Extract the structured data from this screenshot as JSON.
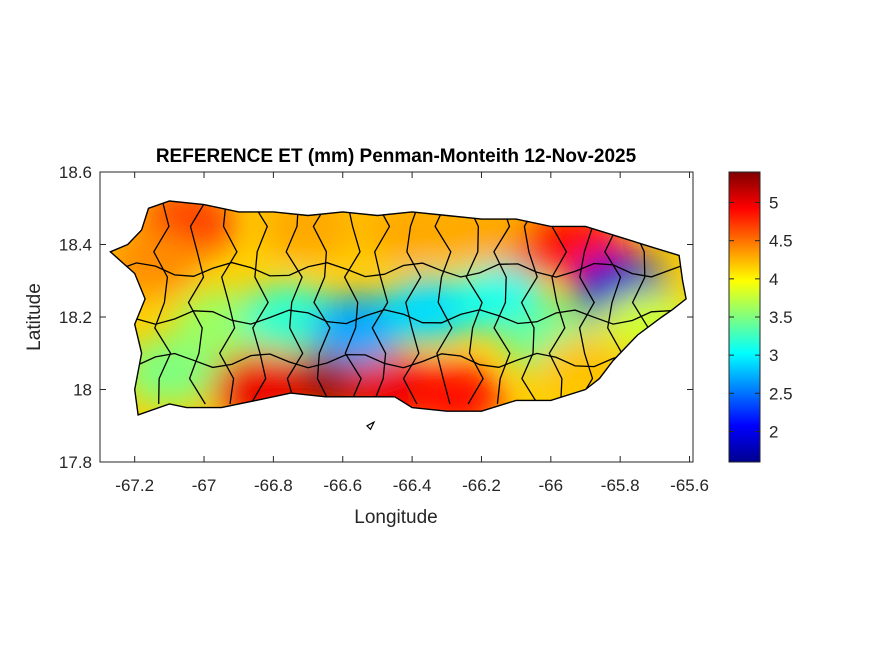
{
  "figure": {
    "title": "REFERENCE ET (mm) Penman-Monteith 12-Nov-2025",
    "xlabel": "Longitude",
    "ylabel": "Latitude"
  },
  "axes": {
    "xlim": [
      -67.3,
      -65.59
    ],
    "ylim": [
      17.8,
      18.6
    ],
    "xticks": [
      -67.2,
      -67,
      -66.8,
      -66.6,
      -66.4,
      -66.2,
      -66,
      -65.8,
      -65.6
    ],
    "xtick_labels": [
      "-67.2",
      "-67",
      "-66.8",
      "-66.6",
      "-66.4",
      "-66.2",
      "-66",
      "-65.8",
      "-65.6"
    ],
    "yticks": [
      17.8,
      18,
      18.2,
      18.4,
      18.6
    ],
    "ytick_labels": [
      "17.8",
      "18",
      "18.2",
      "18.4",
      "18.6"
    ]
  },
  "colorbar": {
    "colormap": "jet",
    "range": [
      1.6,
      5.4
    ],
    "ticks": [
      2,
      2.5,
      3,
      3.5,
      4,
      4.5,
      5
    ],
    "tick_labels": [
      "2",
      "2.5",
      "3",
      "3.5",
      "4",
      "4.5",
      "5"
    ]
  },
  "chart_data": {
    "type": "heatmap",
    "title": "REFERENCE ET (mm) Penman-Monteith 12-Nov-2025",
    "xlabel": "Longitude",
    "ylabel": "Latitude",
    "xlim": [
      -67.3,
      -65.59
    ],
    "ylim": [
      17.8,
      18.6
    ],
    "colormap": "jet",
    "clim": [
      1.6,
      5.4
    ],
    "island_outline": [
      [
        -67.27,
        18.38
      ],
      [
        -67.22,
        18.4
      ],
      [
        -67.18,
        18.44
      ],
      [
        -67.16,
        18.5
      ],
      [
        -67.1,
        18.52
      ],
      [
        -67.0,
        18.51
      ],
      [
        -66.9,
        18.49
      ],
      [
        -66.8,
        18.49
      ],
      [
        -66.7,
        18.48
      ],
      [
        -66.6,
        18.49
      ],
      [
        -66.5,
        18.48
      ],
      [
        -66.4,
        18.49
      ],
      [
        -66.3,
        18.48
      ],
      [
        -66.2,
        18.47
      ],
      [
        -66.1,
        18.47
      ],
      [
        -66.0,
        18.45
      ],
      [
        -65.9,
        18.45
      ],
      [
        -65.8,
        18.42
      ],
      [
        -65.7,
        18.39
      ],
      [
        -65.63,
        18.37
      ],
      [
        -65.62,
        18.3
      ],
      [
        -65.61,
        18.25
      ],
      [
        -65.65,
        18.22
      ],
      [
        -65.68,
        18.2
      ],
      [
        -65.75,
        18.15
      ],
      [
        -65.82,
        18.08
      ],
      [
        -65.86,
        18.03
      ],
      [
        -65.9,
        18.0
      ],
      [
        -66.0,
        17.97
      ],
      [
        -66.1,
        17.97
      ],
      [
        -66.2,
        17.94
      ],
      [
        -66.3,
        17.94
      ],
      [
        -66.4,
        17.95
      ],
      [
        -66.45,
        17.98
      ],
      [
        -66.55,
        17.98
      ],
      [
        -66.65,
        17.98
      ],
      [
        -66.75,
        17.99
      ],
      [
        -66.85,
        17.97
      ],
      [
        -66.95,
        17.95
      ],
      [
        -67.05,
        17.95
      ],
      [
        -67.1,
        17.96
      ],
      [
        -67.19,
        17.93
      ],
      [
        -67.2,
        18.0
      ],
      [
        -67.18,
        18.1
      ],
      [
        -67.2,
        18.18
      ],
      [
        -67.17,
        18.25
      ],
      [
        -67.2,
        18.32
      ],
      [
        -67.27,
        18.38
      ]
    ],
    "small_islet": [
      [
        -66.53,
        17.9
      ],
      [
        -66.51,
        17.91
      ],
      [
        -66.52,
        17.89
      ]
    ],
    "et_centers": [
      {
        "lon": -66.62,
        "lat": 18.03,
        "value": 5.3
      },
      {
        "lon": -66.45,
        "lat": 18.0,
        "value": 5.0
      },
      {
        "lon": -66.28,
        "lat": 17.98,
        "value": 4.9
      },
      {
        "lon": -66.85,
        "lat": 18.01,
        "value": 5.0
      },
      {
        "lon": -66.05,
        "lat": 18.4,
        "value": 5.0
      },
      {
        "lon": -65.92,
        "lat": 18.4,
        "value": 4.9
      },
      {
        "lon": -66.2,
        "lat": 18.44,
        "value": 4.3
      },
      {
        "lon": -66.4,
        "lat": 18.44,
        "value": 4.3
      },
      {
        "lon": -66.7,
        "lat": 18.45,
        "value": 4.3
      },
      {
        "lon": -67.05,
        "lat": 18.46,
        "value": 4.7
      },
      {
        "lon": -67.15,
        "lat": 18.35,
        "value": 4.4
      },
      {
        "lon": -67.1,
        "lat": 18.05,
        "value": 3.5
      },
      {
        "lon": -66.95,
        "lat": 18.18,
        "value": 3.6
      },
      {
        "lon": -66.75,
        "lat": 18.2,
        "value": 3.2
      },
      {
        "lon": -66.55,
        "lat": 18.17,
        "value": 2.7
      },
      {
        "lon": -66.35,
        "lat": 18.22,
        "value": 2.9
      },
      {
        "lon": -66.15,
        "lat": 18.25,
        "value": 3.1
      },
      {
        "lon": -66.0,
        "lat": 18.14,
        "value": 3.4
      },
      {
        "lon": -65.8,
        "lat": 18.28,
        "value": 1.9
      },
      {
        "lon": -65.72,
        "lat": 18.18,
        "value": 3.8
      },
      {
        "lon": -65.9,
        "lat": 18.06,
        "value": 4.2
      }
    ]
  }
}
